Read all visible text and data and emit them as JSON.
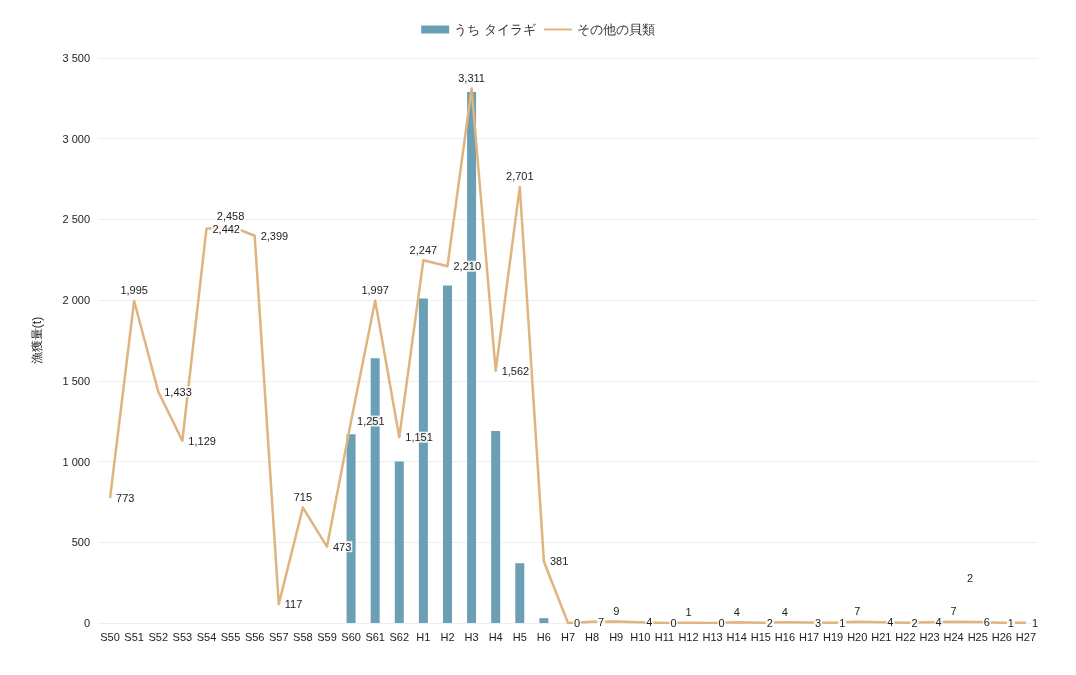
{
  "chart_data": {
    "type": "bar",
    "ylabel": "漁獲量(t)",
    "categories": [
      "S50",
      "S51",
      "S52",
      "S53",
      "S54",
      "S55",
      "S56",
      "S57",
      "S58",
      "S59",
      "S60",
      "S61",
      "S62",
      "H1",
      "H2",
      "H3",
      "H4",
      "H5",
      "H6",
      "H7",
      "H8",
      "H9",
      "H10",
      "H11",
      "H12",
      "H13",
      "H14",
      "H15",
      "H16",
      "H17",
      "H19",
      "H20",
      "H21",
      "H22",
      "H23",
      "H24",
      "H25",
      "H26",
      "H27"
    ],
    "series": [
      {
        "name": "うち タイラギ",
        "type": "bar",
        "color": "#6a9fb5",
        "values": [
          0,
          0,
          0,
          0,
          0,
          0,
          0,
          0,
          0,
          0,
          1170,
          1640,
          1000,
          2010,
          2090,
          3290,
          1190,
          370,
          30,
          0,
          0,
          0,
          0,
          0,
          0,
          0,
          0,
          0,
          0,
          0,
          0,
          0,
          0,
          0,
          0,
          0,
          0,
          0,
          0
        ]
      },
      {
        "name": "その他の貝類",
        "type": "line",
        "color": "#e0b47f",
        "values": [
          773,
          1995,
          1433,
          1129,
          2442,
          2458,
          2399,
          117,
          715,
          473,
          1251,
          1997,
          1151,
          2247,
          2210,
          3311,
          1562,
          2701,
          381,
          0,
          7,
          9,
          4,
          0,
          1,
          0,
          4,
          2,
          4,
          3,
          1,
          7,
          4,
          2,
          4,
          7,
          6,
          1,
          1
        ],
        "value_labels": [
          "773",
          "1,995",
          "1,433",
          "1,129",
          "2,442",
          "2,458",
          "2,399",
          "117",
          "715",
          "473",
          "1,251",
          "1,997",
          "1,151",
          "2,247",
          "2,210",
          "3,311",
          "1,562",
          "2,701",
          "381",
          "0",
          "7",
          "9",
          "4",
          "0",
          "1",
          "0",
          "4",
          "2",
          "4",
          "3",
          "1",
          "7",
          "4",
          "2",
          "4",
          "7",
          "6",
          "1",
          "1"
        ]
      }
    ],
    "annotations": [
      "2"
    ],
    "ylim": [
      0,
      3500
    ],
    "yticks": [
      0,
      500,
      {
        "value": 1000,
        "label": "1 000"
      },
      {
        "value": 1500,
        "label": "1 500"
      },
      {
        "value": 2000,
        "label": "2 000"
      },
      {
        "value": 2500,
        "label": "2 500"
      },
      {
        "value": 3000,
        "label": "3 000"
      },
      {
        "value": 3500,
        "label": "3 500"
      }
    ],
    "grid": "y",
    "legend": "top",
    "marker": "none",
    "line_style": "solid"
  }
}
